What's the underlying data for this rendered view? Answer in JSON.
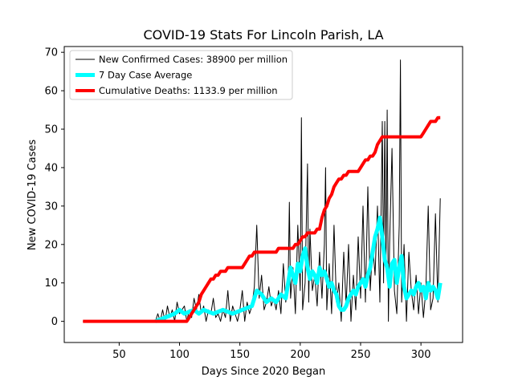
{
  "chart_data": {
    "type": "line",
    "title": "COVID-19 Stats For Lincoln Parish, LA",
    "xlabel": "Days Since 2020 Began",
    "ylabel": "New COVID-19 Cases",
    "xlim": [
      4.5,
      334.5
    ],
    "ylim": [
      -5.5,
      71.5
    ],
    "x_ticks": [
      50,
      100,
      150,
      200,
      250,
      300
    ],
    "y_ticks": [
      0,
      10,
      20,
      30,
      40,
      50,
      60,
      70
    ],
    "grid": false,
    "legend_position": "top-left",
    "series": [
      {
        "name": "New Confirmed Cases: 38900 per million",
        "color": "#000000",
        "x": [
          20,
          80,
          82,
          84,
          86,
          88,
          90,
          92,
          94,
          96,
          98,
          100,
          102,
          104,
          106,
          108,
          110,
          112,
          114,
          116,
          118,
          120,
          122,
          124,
          126,
          128,
          130,
          132,
          134,
          136,
          138,
          140,
          142,
          144,
          146,
          148,
          150,
          152,
          154,
          156,
          158,
          160,
          162,
          164,
          166,
          168,
          170,
          172,
          174,
          176,
          178,
          180,
          182,
          184,
          186,
          188,
          190,
          191,
          192,
          194,
          196,
          198,
          200,
          201,
          202,
          204,
          206,
          207,
          208,
          210,
          212,
          214,
          216,
          218,
          220,
          221,
          222,
          224,
          226,
          228,
          230,
          232,
          234,
          236,
          238,
          240,
          242,
          244,
          246,
          248,
          250,
          252,
          254,
          256,
          258,
          260,
          262,
          264,
          266,
          268,
          269,
          270,
          271,
          272,
          273,
          274,
          276,
          278,
          280,
          282,
          283,
          284,
          286,
          288,
          290,
          292,
          294,
          296,
          298,
          300,
          302,
          304,
          306,
          308,
          310,
          312,
          314,
          316
        ],
        "values": [
          0,
          0,
          2,
          0,
          3,
          0,
          4,
          1,
          3,
          0,
          5,
          2,
          3,
          4,
          0,
          3,
          1,
          6,
          3,
          7,
          2,
          4,
          0,
          3,
          2,
          6,
          1,
          2,
          0,
          3,
          1,
          8,
          0,
          4,
          2,
          0,
          3,
          8,
          0,
          5,
          2,
          4,
          9,
          25,
          6,
          12,
          3,
          5,
          9,
          4,
          6,
          3,
          8,
          2,
          15,
          5,
          10,
          31,
          6,
          14,
          2,
          25,
          8,
          53,
          3,
          10,
          41,
          5,
          24,
          8,
          12,
          4,
          18,
          6,
          20,
          40,
          3,
          15,
          2,
          25,
          5,
          10,
          0,
          18,
          4,
          20,
          0,
          12,
          3,
          22,
          6,
          30,
          5,
          35,
          8,
          20,
          12,
          30,
          5,
          52,
          10,
          52,
          15,
          55,
          0,
          20,
          45,
          8,
          2,
          25,
          68,
          5,
          20,
          0,
          18,
          8,
          3,
          12,
          2,
          10,
          1,
          8,
          30,
          3,
          6,
          28,
          5,
          32
        ],
        "linewidth": 1
      },
      {
        "name": "7 Day Case Average",
        "color": "#00ffff",
        "x": [
          80,
          84,
          88,
          92,
          96,
          100,
          104,
          108,
          112,
          116,
          120,
          124,
          128,
          132,
          136,
          140,
          144,
          148,
          152,
          156,
          160,
          164,
          168,
          172,
          176,
          180,
          184,
          188,
          190,
          192,
          194,
          196,
          198,
          200,
          202,
          204,
          206,
          208,
          210,
          212,
          214,
          216,
          218,
          220,
          222,
          224,
          226,
          228,
          230,
          232,
          234,
          236,
          238,
          240,
          242,
          244,
          246,
          248,
          250,
          252,
          254,
          256,
          258,
          260,
          262,
          264,
          266,
          268,
          270,
          272,
          274,
          276,
          278,
          280,
          282,
          284,
          286,
          288,
          290,
          292,
          294,
          296,
          298,
          300,
          302,
          304,
          306,
          308,
          310,
          312,
          314,
          316
        ],
        "values": [
          0,
          0.5,
          1,
          1.5,
          2,
          3,
          2,
          2.5,
          3,
          2,
          3,
          2.5,
          2,
          2.5,
          3,
          2.5,
          2,
          2.5,
          3,
          3.5,
          4,
          8,
          7,
          5,
          6,
          5,
          7,
          6,
          10,
          14,
          12,
          10,
          15,
          13,
          17,
          19,
          14,
          11,
          13,
          12,
          10,
          14,
          12,
          13,
          11,
          9,
          10,
          8,
          7,
          4,
          3,
          3,
          4,
          6,
          7,
          8,
          7,
          9,
          10,
          11,
          9,
          12,
          14,
          18,
          22,
          24,
          27,
          22,
          16,
          14,
          9,
          15,
          16,
          10,
          14,
          17,
          9,
          6,
          7,
          8,
          7,
          9,
          10,
          8,
          9,
          6,
          10,
          8,
          9,
          8,
          6,
          10
        ],
        "linewidth": 5
      },
      {
        "name": "Cumulative Deaths: 1133.9 per million",
        "color": "#ff0000",
        "x": [
          20,
          106,
          108,
          110,
          112,
          114,
          116,
          118,
          120,
          122,
          124,
          126,
          128,
          130,
          132,
          134,
          136,
          138,
          140,
          142,
          144,
          146,
          148,
          150,
          152,
          154,
          156,
          158,
          160,
          162,
          164,
          166,
          168,
          170,
          172,
          174,
          176,
          178,
          180,
          182,
          184,
          186,
          188,
          190,
          192,
          194,
          196,
          198,
          200,
          202,
          204,
          206,
          208,
          210,
          212,
          214,
          216,
          218,
          220,
          222,
          224,
          226,
          228,
          230,
          232,
          234,
          236,
          238,
          240,
          242,
          244,
          246,
          248,
          250,
          252,
          254,
          256,
          258,
          260,
          262,
          264,
          266,
          268,
          270,
          272,
          274,
          276,
          278,
          280,
          282,
          284,
          286,
          288,
          290,
          292,
          294,
          296,
          298,
          300,
          302,
          304,
          306,
          308,
          310,
          312,
          314,
          316
        ],
        "values": [
          0,
          0,
          1,
          2,
          3,
          4,
          5,
          7,
          8,
          9,
          10,
          11,
          11,
          12,
          12,
          13,
          13,
          13,
          14,
          14,
          14,
          14,
          14,
          14,
          14,
          15,
          16,
          17,
          17,
          18,
          18,
          18,
          18,
          18,
          18,
          18,
          18,
          18,
          18,
          19,
          19,
          19,
          19,
          19,
          19,
          19,
          20,
          20,
          21,
          22,
          22,
          23,
          23,
          23,
          23,
          24,
          24,
          27,
          29,
          30,
          32,
          33,
          35,
          36,
          37,
          37,
          38,
          38,
          39,
          39,
          39,
          39,
          39,
          40,
          41,
          42,
          42,
          43,
          43,
          44,
          46,
          47,
          48,
          48,
          48,
          48,
          48,
          48,
          48,
          48,
          48,
          48,
          48,
          48,
          48,
          48,
          48,
          48,
          48,
          49,
          50,
          51,
          52,
          52,
          52,
          53,
          53
        ],
        "linewidth": 4
      }
    ]
  }
}
